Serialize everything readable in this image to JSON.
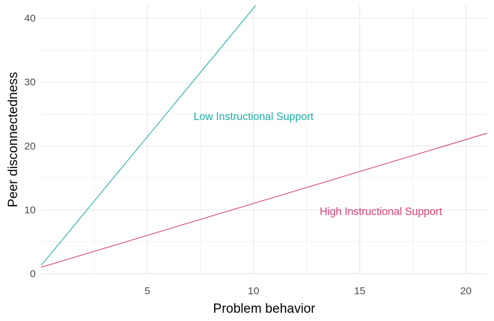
{
  "chart_data": {
    "type": "line",
    "title": "",
    "xlabel": "Problem behavior",
    "ylabel": "Peer disconnectedness",
    "xlim": [
      0,
      21
    ],
    "ylim": [
      0,
      42
    ],
    "x_ticks": [
      5,
      10,
      15,
      20
    ],
    "y_ticks": [
      0,
      10,
      20,
      30,
      40
    ],
    "grid": "major and minor, light grey",
    "legend": "none",
    "series": [
      {
        "color": "#1BAFA6",
        "x": [
          0,
          10.1
        ],
        "y": [
          1.3,
          42
        ]
      },
      {
        "color": "#D63E70",
        "x": [
          0,
          21
        ],
        "y": [
          1.0,
          22.0
        ]
      }
    ],
    "annotations": [
      {
        "text": "Low Instructional Support",
        "x": 10,
        "y": 24.6,
        "color": "#1BAFA6"
      },
      {
        "text": "High Instructional Support",
        "x": 16,
        "y": 9.7,
        "color": "#D63E70"
      }
    ]
  }
}
